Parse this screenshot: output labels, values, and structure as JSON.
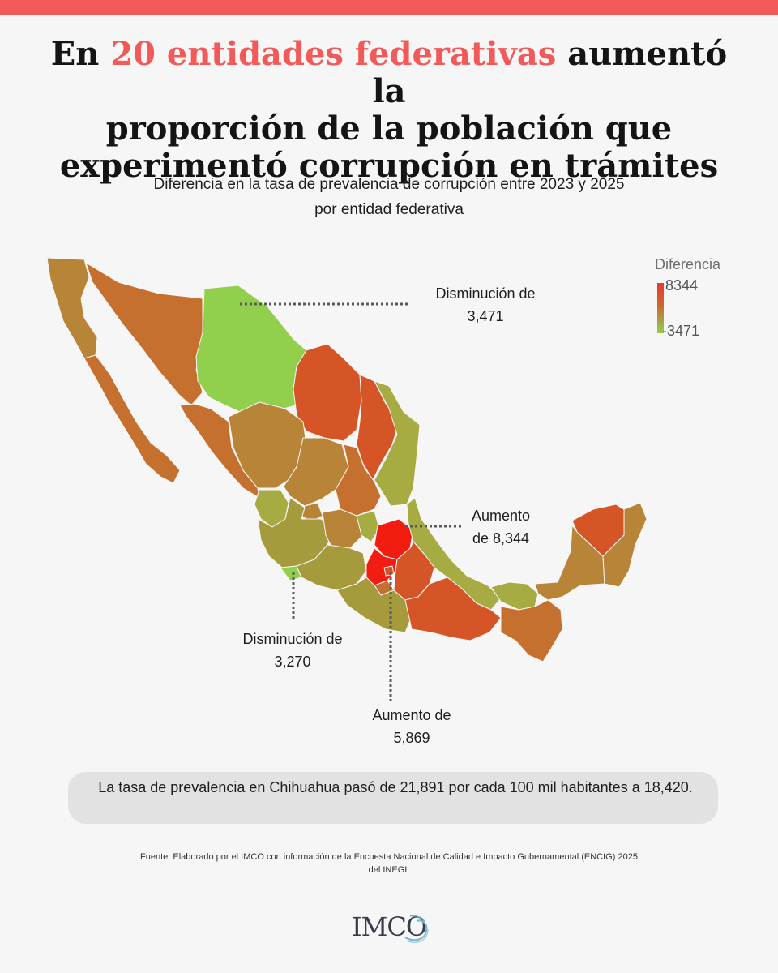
{
  "title": {
    "accent": "20 entidades federativas",
    "line1_prefix": "En ",
    "line1_suffix": " aumentó la",
    "line2": "proporción de la población que",
    "line3": "experimentó corrupción en trámites"
  },
  "subtitle": {
    "line1": "Diferencia en la tasa de prevalencia de corrupción entre 2023 y 2025",
    "line2": "por entidad federativa"
  },
  "legend": {
    "title": "Diferencia",
    "max_label": "8344",
    "min_label": "-3471",
    "max_value": 8344,
    "min_value": -3471,
    "color_high": "#e8382e",
    "color_mid": "#c96a32",
    "color_low": "#92cf4d"
  },
  "callouts": {
    "chihuahua": {
      "line1": "Disminución de",
      "line2": "3,471"
    },
    "hidalgo": {
      "line1": "Aumento",
      "line2": "de 8,344"
    },
    "colima": {
      "line1": "Disminución de",
      "line2": "3,270"
    },
    "guerrero": {
      "line1": "Aumento de",
      "line2": "5,869"
    }
  },
  "note": "La  tasa de prevalencia en Chihuahua pasó de 21,891 por cada 100 mil habitantes a 18,420.",
  "source": {
    "line1": "Fuente: Elaborado por el IMCO con información de la Encuesta Nacional de Calidad e Impacto Gubernamental (ENCIG) 2025",
    "line2": "del INEGI."
  },
  "logo": "IMCO",
  "colors": {
    "accent": "#f25a5a",
    "state_red": "#f21d10",
    "state_orange_red": "#d65527",
    "state_orange": "#c6702f",
    "state_brown": "#b88438",
    "state_olive": "#a59a3c",
    "state_olive_green": "#a6ab42",
    "state_green": "#92cf4d"
  }
}
